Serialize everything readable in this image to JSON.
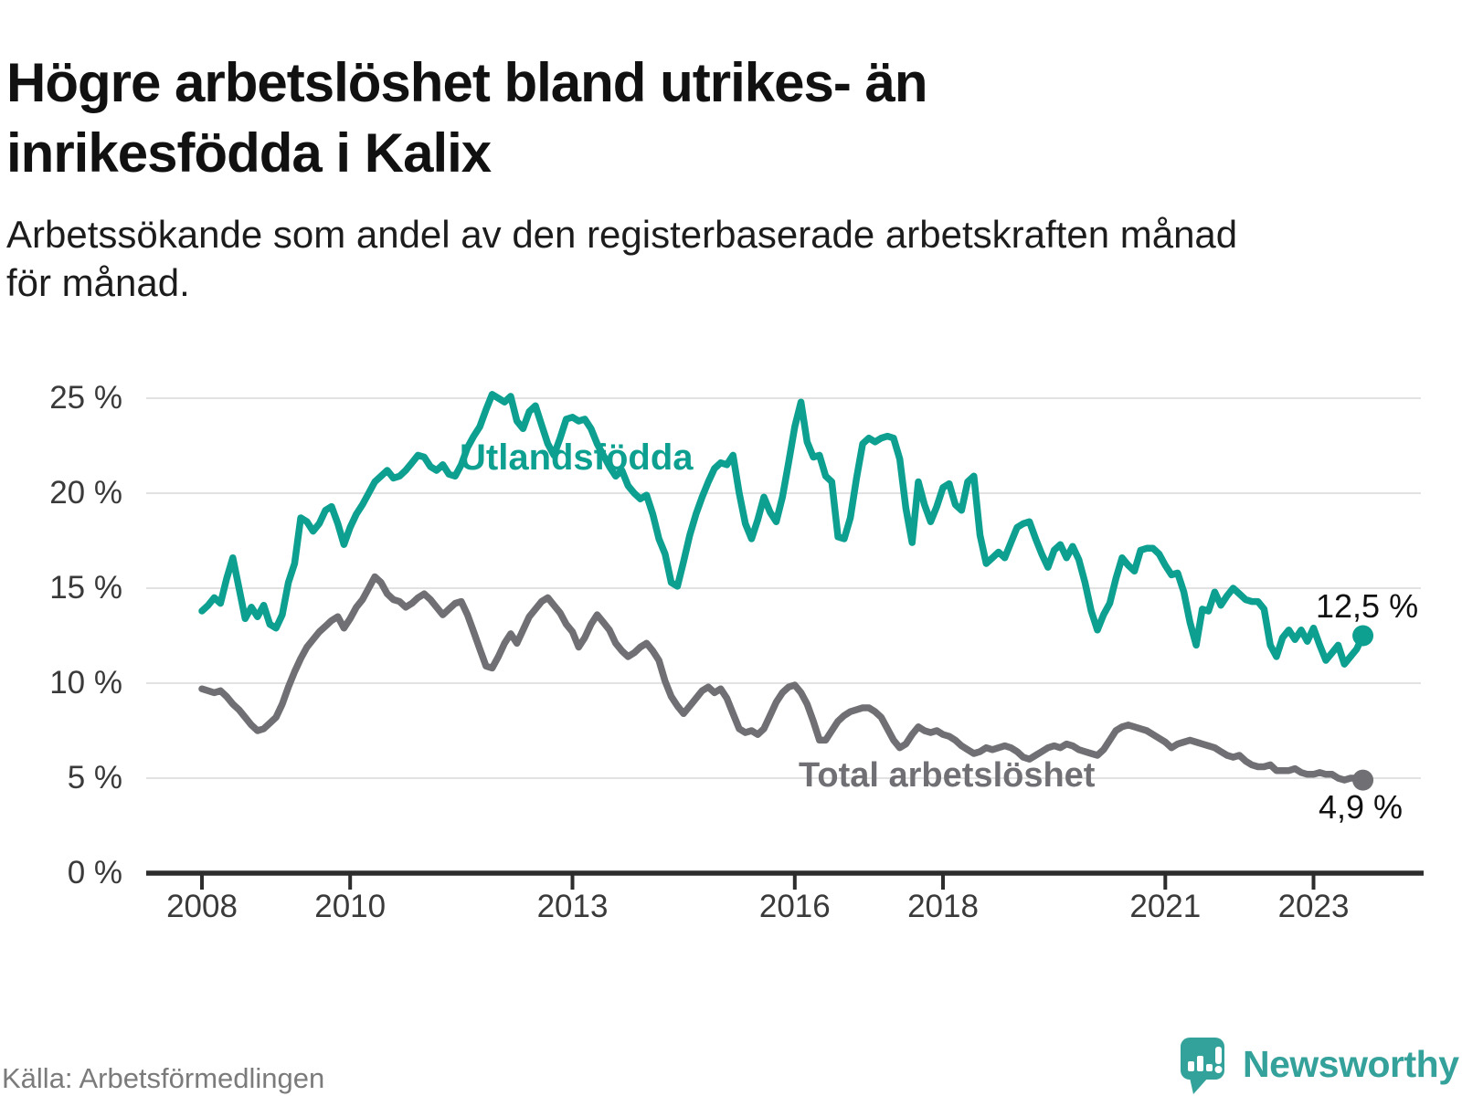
{
  "page": {
    "title_lines": [
      "Högre arbetslöshet bland utrikes- än",
      "inrikesfödda i Kalix"
    ],
    "subtitle_lines": [
      "Arbetssökande som andel av den registerbaserade arbetskraften månad",
      "för månad."
    ],
    "source": "Källa: Arbetsförmedlingen"
  },
  "brand": {
    "name": "Newsworthy",
    "color": "#35a19b"
  },
  "colors": {
    "accent_teal": "#0da091",
    "neutral_gray": "#706f73",
    "gridline": "#e2e2e2",
    "axis": "#2d2d2d",
    "tick_text": "#3a3a3a",
    "title_text": "#111111",
    "source_text": "#7b7b7b"
  },
  "chart_data": {
    "type": "line",
    "title": "Högre arbetslöshet bland utrikes- än inrikesfödda i Kalix",
    "subtitle": "Arbetssökande som andel av den registerbaserade arbetskraften månad för månad.",
    "unit": "%",
    "frequency": "monthly",
    "x_start": "2008-01",
    "x_end": "2023-09",
    "grid": true,
    "legend_position": "inline-labels",
    "y_axis": {
      "min": 0,
      "max": 25,
      "tick_values": [
        0,
        5,
        10,
        15,
        20,
        25
      ],
      "tick_suffix": " %"
    },
    "x_axis": {
      "tick_years": [
        2008,
        2010,
        2013,
        2016,
        2018,
        2021,
        2023
      ]
    },
    "series": [
      {
        "name": "Utlandsfödda",
        "color": "#0da091",
        "end_label": "12,5 %",
        "end_value": 12.5,
        "values": [
          13.8,
          14.1,
          14.5,
          14.2,
          15.5,
          16.6,
          15.0,
          13.4,
          14.0,
          13.5,
          14.1,
          13.1,
          12.9,
          13.6,
          15.3,
          16.3,
          18.7,
          18.5,
          18.0,
          18.4,
          19.1,
          19.3,
          18.4,
          17.3,
          18.2,
          18.9,
          19.4,
          20.0,
          20.6,
          20.9,
          21.2,
          20.8,
          20.9,
          21.2,
          21.6,
          22.0,
          21.9,
          21.4,
          21.2,
          21.5,
          21.0,
          20.9,
          21.5,
          22.4,
          23.0,
          23.5,
          24.4,
          25.2,
          25.0,
          24.8,
          25.1,
          23.8,
          23.4,
          24.3,
          24.6,
          23.6,
          22.6,
          22.0,
          22.9,
          23.9,
          24.0,
          23.8,
          23.9,
          23.4,
          22.6,
          22.0,
          21.4,
          20.9,
          21.2,
          20.4,
          20.0,
          19.7,
          19.9,
          18.9,
          17.6,
          16.8,
          15.3,
          15.1,
          16.4,
          17.8,
          18.9,
          19.8,
          20.6,
          21.3,
          21.6,
          21.5,
          22.0,
          20.0,
          18.4,
          17.6,
          18.6,
          19.8,
          19.0,
          18.5,
          19.8,
          21.6,
          23.5,
          24.8,
          22.7,
          21.9,
          22.0,
          20.9,
          20.6,
          17.7,
          17.6,
          18.7,
          20.8,
          22.6,
          22.9,
          22.7,
          22.9,
          23.0,
          22.9,
          21.8,
          19.2,
          17.4,
          20.6,
          19.4,
          18.5,
          19.3,
          20.3,
          20.5,
          19.4,
          19.1,
          20.6,
          20.9,
          17.8,
          16.3,
          16.6,
          16.9,
          16.6,
          17.4,
          18.2,
          18.4,
          18.5,
          17.6,
          16.8,
          16.1,
          17.0,
          17.3,
          16.6,
          17.2,
          16.5,
          15.3,
          13.8,
          12.8,
          13.6,
          14.2,
          15.5,
          16.6,
          16.2,
          15.9,
          17.0,
          17.1,
          17.1,
          16.8,
          16.2,
          15.7,
          15.8,
          14.8,
          13.2,
          12.0,
          13.9,
          13.8,
          14.8,
          14.1,
          14.6,
          15.0,
          14.7,
          14.4,
          14.3,
          14.3,
          13.9,
          12.0,
          11.4,
          12.4,
          12.8,
          12.3,
          12.8,
          12.2,
          12.9,
          12.0,
          11.2,
          11.6,
          12.0,
          11.0,
          11.4,
          11.8,
          12.5
        ]
      },
      {
        "name": "Total arbetslöshet",
        "color": "#706f73",
        "end_label": "4,9 %",
        "end_value": 4.9,
        "values": [
          9.7,
          9.6,
          9.5,
          9.6,
          9.3,
          8.9,
          8.6,
          8.2,
          7.8,
          7.5,
          7.6,
          7.9,
          8.2,
          8.9,
          9.8,
          10.6,
          11.3,
          11.9,
          12.3,
          12.7,
          13.0,
          13.3,
          13.5,
          12.9,
          13.4,
          14.0,
          14.4,
          15.0,
          15.6,
          15.3,
          14.7,
          14.4,
          14.3,
          14.0,
          14.2,
          14.5,
          14.7,
          14.4,
          14.0,
          13.6,
          13.9,
          14.2,
          14.3,
          13.6,
          12.7,
          11.8,
          10.9,
          10.8,
          11.4,
          12.1,
          12.6,
          12.1,
          12.8,
          13.5,
          13.9,
          14.3,
          14.5,
          14.1,
          13.7,
          13.1,
          12.7,
          11.9,
          12.4,
          13.1,
          13.6,
          13.2,
          12.8,
          12.1,
          11.7,
          11.4,
          11.6,
          11.9,
          12.1,
          11.7,
          11.2,
          10.1,
          9.3,
          8.8,
          8.4,
          8.8,
          9.2,
          9.6,
          9.8,
          9.5,
          9.7,
          9.2,
          8.4,
          7.6,
          7.4,
          7.5,
          7.3,
          7.6,
          8.3,
          9.0,
          9.5,
          9.8,
          9.9,
          9.5,
          8.9,
          8.0,
          7.0,
          7.0,
          7.5,
          8.0,
          8.3,
          8.5,
          8.6,
          8.7,
          8.7,
          8.5,
          8.2,
          7.6,
          7.0,
          6.6,
          6.8,
          7.3,
          7.7,
          7.5,
          7.4,
          7.5,
          7.3,
          7.2,
          7.0,
          6.7,
          6.5,
          6.3,
          6.4,
          6.6,
          6.5,
          6.6,
          6.7,
          6.6,
          6.4,
          6.1,
          6.0,
          6.2,
          6.4,
          6.6,
          6.7,
          6.6,
          6.8,
          6.7,
          6.5,
          6.4,
          6.3,
          6.2,
          6.5,
          7.0,
          7.5,
          7.7,
          7.8,
          7.7,
          7.6,
          7.5,
          7.3,
          7.1,
          6.9,
          6.6,
          6.8,
          6.9,
          7.0,
          6.9,
          6.8,
          6.7,
          6.6,
          6.4,
          6.2,
          6.1,
          6.2,
          5.9,
          5.7,
          5.6,
          5.6,
          5.7,
          5.4,
          5.4,
          5.4,
          5.5,
          5.3,
          5.2,
          5.2,
          5.3,
          5.2,
          5.2,
          5.0,
          4.9,
          5.0,
          5.0,
          4.9
        ]
      }
    ]
  }
}
